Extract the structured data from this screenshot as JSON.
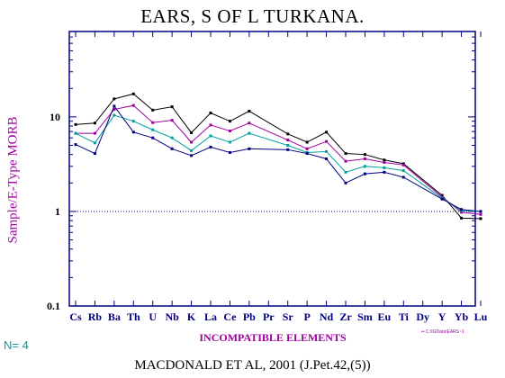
{
  "chart_data": {
    "type": "line",
    "title": "EARS, S OF L TURKANA.",
    "ylabel": "Sample/E-Type MORB",
    "xlabel": "INCOMPATIBLE ELEMENTS",
    "y_scale": "log",
    "ylim": [
      0.1,
      80
    ],
    "yticks": [
      "0.1",
      "1",
      "10"
    ],
    "reference_line": 1,
    "categories": [
      "Cs",
      "Rb",
      "Ba",
      "Th",
      "U",
      "Nb",
      "K",
      "La",
      "Ce",
      "Pb",
      "Pr",
      "Sr",
      "P",
      "Nd",
      "Zr",
      "Sm",
      "Eu",
      "Ti",
      "Dy",
      "Y",
      "Yb",
      "Lu"
    ],
    "series": [
      {
        "color": "#000000",
        "points": [
          [
            0,
            8.3
          ],
          [
            1,
            8.6
          ],
          [
            2,
            15.5
          ],
          [
            3,
            17.5
          ],
          [
            4,
            11.8
          ],
          [
            5,
            12.8
          ],
          [
            6,
            6.8
          ],
          [
            7,
            11
          ],
          [
            8,
            9
          ],
          [
            9,
            11.5
          ],
          [
            11,
            6.6
          ],
          [
            12,
            5.4
          ],
          [
            13,
            6.9
          ],
          [
            14,
            4.1
          ],
          [
            15,
            4.0
          ],
          [
            16,
            3.5
          ],
          [
            17,
            3.2
          ],
          [
            19,
            1.48
          ],
          [
            20,
            0.85
          ],
          [
            21,
            0.84
          ]
        ]
      },
      {
        "color": "#a000a0",
        "points": [
          [
            0,
            6.7
          ],
          [
            1,
            6.7
          ],
          [
            2,
            12
          ],
          [
            3,
            13.2
          ],
          [
            4,
            8.7
          ],
          [
            5,
            9.2
          ],
          [
            6,
            5.4
          ],
          [
            7,
            8.2
          ],
          [
            8,
            7.1
          ],
          [
            9,
            8.6
          ],
          [
            11,
            5.7
          ],
          [
            12,
            4.6
          ],
          [
            13,
            5.5
          ],
          [
            14,
            3.4
          ],
          [
            15,
            3.6
          ],
          [
            16,
            3.3
          ],
          [
            17,
            3.1
          ],
          [
            19,
            1.42
          ],
          [
            20,
            0.98
          ],
          [
            21,
            0.93
          ]
        ]
      },
      {
        "color": "#00a0a0",
        "points": [
          [
            0,
            6.7
          ],
          [
            1,
            5.3
          ],
          [
            2,
            10.4
          ],
          [
            3,
            9
          ],
          [
            4,
            7.3
          ],
          [
            5,
            6
          ],
          [
            6,
            4.4
          ],
          [
            7,
            6.3
          ],
          [
            8,
            5.4
          ],
          [
            9,
            6.7
          ],
          [
            11,
            5
          ],
          [
            12,
            4.2
          ],
          [
            13,
            4.3
          ],
          [
            14,
            2.6
          ],
          [
            15,
            3
          ],
          [
            16,
            2.9
          ],
          [
            17,
            2.7
          ],
          [
            19,
            1.38
          ],
          [
            20,
            1.02
          ],
          [
            21,
            1.0
          ]
        ]
      },
      {
        "color": "#000080",
        "points": [
          [
            0,
            5.1
          ],
          [
            1,
            4.1
          ],
          [
            2,
            13
          ],
          [
            3,
            6.9
          ],
          [
            4,
            6
          ],
          [
            5,
            4.6
          ],
          [
            6,
            3.9
          ],
          [
            7,
            4.8
          ],
          [
            8,
            4.2
          ],
          [
            9,
            4.6
          ],
          [
            11,
            4.5
          ],
          [
            12,
            4.1
          ],
          [
            13,
            3.6
          ],
          [
            14,
            2
          ],
          [
            15,
            2.5
          ],
          [
            16,
            2.6
          ],
          [
            17,
            2.3
          ],
          [
            19,
            1.35
          ],
          [
            20,
            1.05
          ],
          [
            21,
            1.0
          ]
        ]
      }
    ]
  },
  "n_label": "N=",
  "n_value": "4",
  "file_path": "•• C:\\IGData\\EARS~1",
  "footer": "MACDONALD ET AL, 2001 (J.Pet.42,(5))"
}
